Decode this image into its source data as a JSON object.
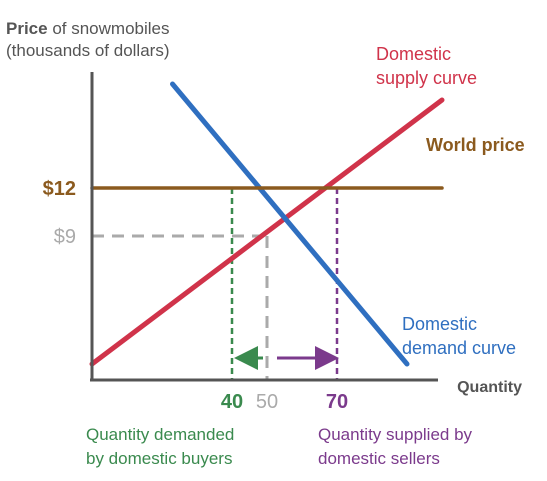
{
  "chart_data": {
    "type": "line",
    "ylabel_bold": "Price",
    "ylabel_rest": " of snowmobiles",
    "ylabel_line2": "(thousands of dollars)",
    "xlabel": "Quantity",
    "xlim": [
      0,
      100
    ],
    "ylim": [
      0,
      20
    ],
    "series": [
      {
        "name": "Domestic supply curve",
        "label_lines": [
          "Domestic",
          "supply curve"
        ],
        "color": "#d0334a",
        "x": [
          0,
          100
        ],
        "y": [
          1,
          17.5
        ]
      },
      {
        "name": "Domestic demand curve",
        "label_lines": [
          "Domestic",
          "demand curve"
        ],
        "color": "#2f6fc0",
        "x": [
          23,
          90
        ],
        "y": [
          18.5,
          1
        ]
      },
      {
        "name": "World price",
        "label_lines": [
          "World price"
        ],
        "color": "#8b5a1e",
        "x": [
          0,
          100
        ],
        "y": [
          12,
          12
        ]
      }
    ],
    "y_marks": [
      {
        "value": 12,
        "label": "$12",
        "color": "#8b5a1e"
      },
      {
        "value": 9,
        "label": "$9",
        "color": "#aaaaaa"
      }
    ],
    "x_marks": [
      {
        "value": 40,
        "label": "40",
        "color": "#3a8a4e"
      },
      {
        "value": 50,
        "label": "50",
        "color": "#aaaaaa"
      },
      {
        "value": 70,
        "label": "70",
        "color": "#7b3a8c"
      }
    ],
    "arrows": [
      {
        "from": 50,
        "to": 40,
        "color": "#3a8a4e"
      },
      {
        "from": 50,
        "to": 70,
        "color": "#7b3a8c"
      }
    ],
    "annotations": [
      {
        "lines": [
          "Quantity demanded",
          "by domestic buyers"
        ],
        "color": "#3a8a4e"
      },
      {
        "lines": [
          "Quantity supplied by",
          "domestic sellers"
        ],
        "color": "#7b3a8c"
      }
    ],
    "grid": false
  }
}
